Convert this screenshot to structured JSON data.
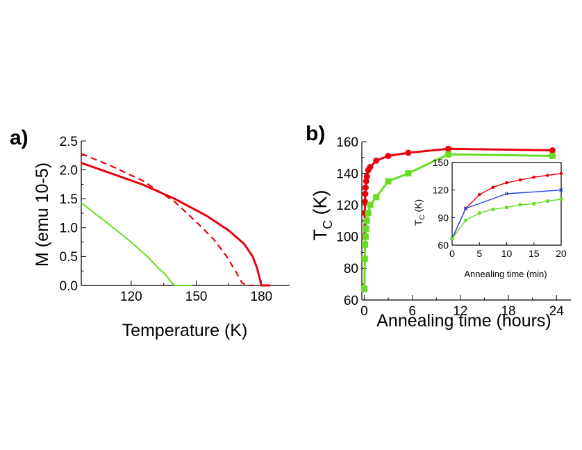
{
  "chart_data": [
    {
      "id": "a",
      "panel_label": "a)",
      "type": "line",
      "title": "",
      "xlabel": "Temperature (K)",
      "ylabel": "M (emu 10-5)",
      "xlim": [
        97,
        193
      ],
      "ylim": [
        0,
        2.5
      ],
      "xticks": [
        120,
        150,
        180
      ],
      "xtick_labels": [
        "120",
        "150",
        "180"
      ],
      "yticks": [
        0.0,
        0.5,
        1.0,
        1.5,
        2.0,
        2.5
      ],
      "ytick_labels": [
        "0.0",
        "0.5",
        "1.0",
        "1.5",
        "2.0",
        "2.5"
      ],
      "series": [
        {
          "name": "red-solid",
          "color": "#e8000b",
          "style": "solid",
          "width": 3,
          "x": [
            97,
            110,
            125,
            140,
            155,
            165,
            172,
            176,
            178,
            179,
            180,
            184
          ],
          "y": [
            2.12,
            1.95,
            1.75,
            1.5,
            1.2,
            0.95,
            0.72,
            0.5,
            0.3,
            0.15,
            0.0,
            0.0
          ]
        },
        {
          "name": "red-dashed",
          "color": "#e8000b",
          "style": "dashed",
          "width": 2.2,
          "x": [
            97,
            110,
            125,
            140,
            150,
            158,
            164,
            168,
            171,
            173,
            176
          ],
          "y": [
            2.28,
            2.08,
            1.82,
            1.45,
            1.1,
            0.8,
            0.5,
            0.25,
            0.05,
            0.0,
            0.0
          ]
        },
        {
          "name": "green",
          "color": "#66dd22",
          "style": "solid",
          "width": 2,
          "x": [
            97,
            110,
            120,
            128,
            133,
            136,
            138,
            140,
            143,
            148
          ],
          "y": [
            1.43,
            1.05,
            0.75,
            0.48,
            0.28,
            0.18,
            0.08,
            0.0,
            0.0,
            0.0
          ]
        }
      ]
    },
    {
      "id": "b",
      "panel_label": "b)",
      "type": "line",
      "title": "",
      "xlabel": "Annealing time (hours)",
      "ylabel_main": "T",
      "ylabel_sub": "C",
      "ylabel_tail": " (K)",
      "xlim": [
        -0.3,
        25.8
      ],
      "ylim": [
        60,
        160
      ],
      "xticks": [
        0,
        6,
        12,
        18,
        24
      ],
      "xtick_labels": [
        "0",
        "6",
        "12",
        "18",
        "24"
      ],
      "yticks": [
        60,
        80,
        100,
        120,
        140,
        160
      ],
      "ytick_labels": [
        "60",
        "80",
        "100",
        "120",
        "140",
        "160"
      ],
      "series": [
        {
          "name": "red",
          "color": "#e8000b",
          "marker": "circle",
          "x": [
            0.03,
            0.07,
            0.1,
            0.13,
            0.17,
            0.25,
            0.33,
            0.5,
            0.75,
            1.5,
            3,
            5.5,
            10.5,
            23.5
          ],
          "y": [
            100,
            115,
            122,
            127,
            131,
            135,
            138,
            142,
            144,
            148,
            151,
            153,
            155.5,
            154.5
          ]
        },
        {
          "name": "green",
          "color": "#66dd22",
          "marker": "square",
          "x": [
            0.03,
            0.07,
            0.1,
            0.17,
            0.25,
            0.33,
            0.5,
            0.75,
            1.5,
            3,
            5.5,
            10.5,
            23.5
          ],
          "y": [
            67,
            86,
            95,
            100,
            105,
            110,
            115,
            120,
            125,
            135,
            140,
            152,
            151
          ]
        }
      ]
    },
    {
      "id": "b-inset",
      "type": "line",
      "title": "",
      "xlabel": "Annealing time (min)",
      "ylabel_main": "T",
      "ylabel_sub": "C",
      "ylabel_tail": " (K)",
      "xlim": [
        0,
        20
      ],
      "ylim": [
        60,
        150
      ],
      "xticks": [
        0,
        5,
        10,
        15,
        20
      ],
      "xtick_labels": [
        "0",
        "5",
        "10",
        "15",
        "20"
      ],
      "yticks": [
        60,
        90,
        120,
        150
      ],
      "ytick_labels": [
        "60",
        "90",
        "120",
        "150"
      ],
      "series": [
        {
          "name": "red",
          "color": "#e8000b",
          "marker": "circle",
          "x": [
            0,
            2.5,
            5,
            7.5,
            10,
            12.5,
            15,
            17.5,
            20
          ],
          "y": [
            67,
            100,
            115,
            123,
            128,
            131,
            134,
            136,
            138
          ]
        },
        {
          "name": "blue",
          "color": "#2244dd",
          "marker": "cross",
          "x": [
            0,
            2.5,
            10,
            20
          ],
          "y": [
            67,
            100,
            116,
            120
          ]
        },
        {
          "name": "green",
          "color": "#66dd22",
          "marker": "square",
          "x": [
            0,
            2.5,
            5,
            7.5,
            10,
            12.5,
            15,
            17.5,
            20
          ],
          "y": [
            67,
            87,
            95,
            99,
            101,
            104,
            105,
            108,
            110
          ]
        }
      ]
    }
  ]
}
